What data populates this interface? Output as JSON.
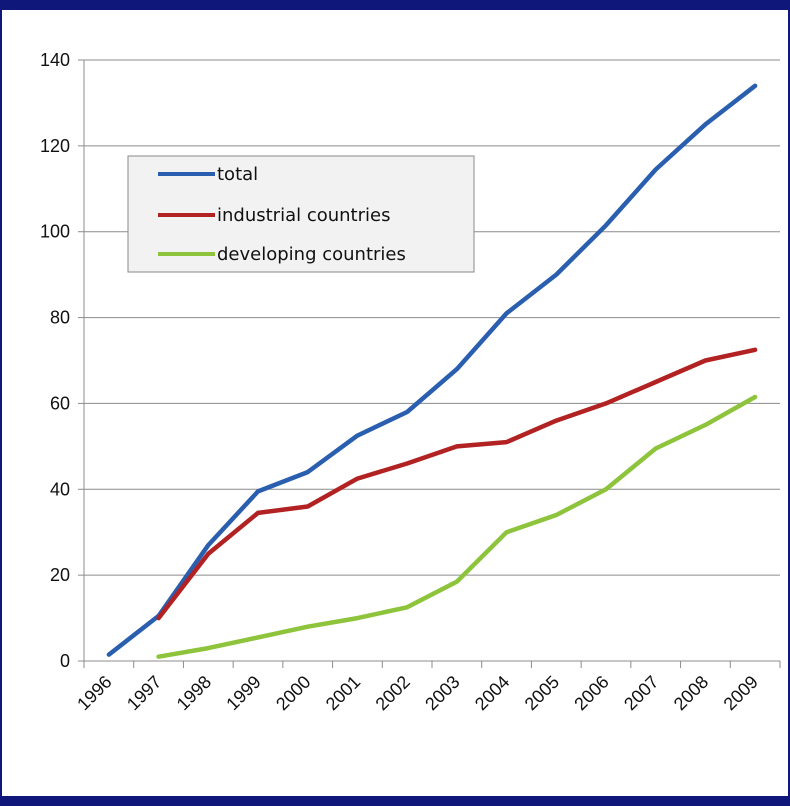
{
  "chart_data": {
    "type": "line",
    "title": "",
    "xlabel": "",
    "ylabel": "",
    "categories": [
      "1996",
      "1997",
      "1998",
      "1999",
      "2000",
      "2001",
      "2002",
      "2003",
      "2004",
      "2005",
      "2006",
      "2007",
      "2008",
      "2009"
    ],
    "ylim": [
      0,
      140
    ],
    "yticks": [
      0,
      20,
      40,
      60,
      80,
      100,
      120,
      140
    ],
    "grid": "horizontal",
    "legend_position": "top-left",
    "series": [
      {
        "name": "total",
        "color": "#2a5fb0",
        "values": [
          1.5,
          10.5,
          27,
          39.5,
          44,
          52.5,
          58,
          68,
          81,
          90,
          101.5,
          114.5,
          125,
          134
        ]
      },
      {
        "name": "industrial countries",
        "color": "#b22222",
        "values": [
          null,
          10,
          25,
          34.5,
          36,
          42.5,
          46,
          50,
          51,
          56,
          60,
          65,
          70,
          72.5
        ]
      },
      {
        "name": "developing countries",
        "color": "#8dc43c",
        "values": [
          null,
          1,
          3,
          5.5,
          8,
          10,
          12.5,
          18.5,
          30,
          34,
          40,
          49.5,
          55,
          61.5
        ]
      }
    ]
  }
}
